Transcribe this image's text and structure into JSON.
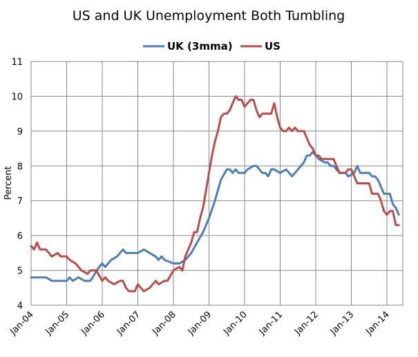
{
  "chart_data": {
    "type": "line",
    "title": "US and UK Unemployment Both Tumbling",
    "xlabel": "",
    "ylabel": "Percent",
    "ylim": [
      4,
      11
    ],
    "yticks": [
      4,
      5,
      6,
      7,
      8,
      9,
      10,
      11
    ],
    "grid": true,
    "legend": "top",
    "xlim": [
      "2004-01",
      "2014-05"
    ],
    "xticks": [
      {
        "label": "Jan-04",
        "date": "2004-01"
      },
      {
        "label": "Jan-05",
        "date": "2005-01"
      },
      {
        "label": "Jan-06",
        "date": "2006-01"
      },
      {
        "label": "Jan-07",
        "date": "2007-01"
      },
      {
        "label": "Jan-08",
        "date": "2008-01"
      },
      {
        "label": "Jan-09",
        "date": "2009-01"
      },
      {
        "label": "Jan-10",
        "date": "2010-01"
      },
      {
        "label": "Jan-11",
        "date": "2011-01"
      },
      {
        "label": "Jan-12",
        "date": "2012-01"
      },
      {
        "label": "Jan-13",
        "date": "2013-01"
      },
      {
        "label": "Jan-14",
        "date": "2014-01"
      }
    ],
    "series": [
      {
        "name": "UK (3mma)",
        "color": "#4a7ebb",
        "points": [
          [
            "2004-01",
            4.8
          ],
          [
            "2004-06",
            4.8
          ],
          [
            "2004-08",
            4.7
          ],
          [
            "2005-01",
            4.7
          ],
          [
            "2005-02",
            4.8
          ],
          [
            "2005-03",
            4.7
          ],
          [
            "2005-05",
            4.8
          ],
          [
            "2005-07",
            4.7
          ],
          [
            "2005-09",
            4.7
          ],
          [
            "2005-12",
            5.1
          ],
          [
            "2006-01",
            5.2
          ],
          [
            "2006-02",
            5.1
          ],
          [
            "2006-04",
            5.3
          ],
          [
            "2006-06",
            5.4
          ],
          [
            "2006-08",
            5.6
          ],
          [
            "2006-09",
            5.5
          ],
          [
            "2007-01",
            5.5
          ],
          [
            "2007-03",
            5.6
          ],
          [
            "2007-05",
            5.5
          ],
          [
            "2007-07",
            5.4
          ],
          [
            "2007-08",
            5.3
          ],
          [
            "2007-09",
            5.4
          ],
          [
            "2007-10",
            5.3
          ],
          [
            "2008-01",
            5.2
          ],
          [
            "2008-03",
            5.2
          ],
          [
            "2008-05",
            5.3
          ],
          [
            "2008-07",
            5.5
          ],
          [
            "2008-09",
            5.8
          ],
          [
            "2008-11",
            6.1
          ],
          [
            "2009-01",
            6.5
          ],
          [
            "2009-03",
            7.0
          ],
          [
            "2009-05",
            7.6
          ],
          [
            "2009-07",
            7.9
          ],
          [
            "2009-08",
            7.9
          ],
          [
            "2009-09",
            7.8
          ],
          [
            "2009-10",
            7.9
          ],
          [
            "2009-11",
            7.8
          ],
          [
            "2010-01",
            7.8
          ],
          [
            "2010-02",
            7.9
          ],
          [
            "2010-04",
            8.0
          ],
          [
            "2010-05",
            8.0
          ],
          [
            "2010-07",
            7.8
          ],
          [
            "2010-08",
            7.8
          ],
          [
            "2010-09",
            7.7
          ],
          [
            "2010-10",
            7.9
          ],
          [
            "2010-11",
            7.9
          ],
          [
            "2011-01",
            7.8
          ],
          [
            "2011-03",
            7.9
          ],
          [
            "2011-05",
            7.7
          ],
          [
            "2011-07",
            7.9
          ],
          [
            "2011-09",
            8.1
          ],
          [
            "2011-10",
            8.3
          ],
          [
            "2011-11",
            8.3
          ],
          [
            "2011-12",
            8.4
          ],
          [
            "2012-02",
            8.2
          ],
          [
            "2012-04",
            8.1
          ],
          [
            "2012-05",
            8.1
          ],
          [
            "2012-06",
            8.0
          ],
          [
            "2012-07",
            8.0
          ],
          [
            "2012-08",
            7.9
          ],
          [
            "2012-09",
            7.8
          ],
          [
            "2012-11",
            7.8
          ],
          [
            "2012-12",
            7.7
          ],
          [
            "2013-02",
            7.8
          ],
          [
            "2013-03",
            8.0
          ],
          [
            "2013-04",
            7.8
          ],
          [
            "2013-07",
            7.8
          ],
          [
            "2013-08",
            7.7
          ],
          [
            "2013-09",
            7.7
          ],
          [
            "2013-10",
            7.6
          ],
          [
            "2013-11",
            7.4
          ],
          [
            "2013-12",
            7.2
          ],
          [
            "2014-01",
            7.2
          ],
          [
            "2014-02",
            7.2
          ],
          [
            "2014-03",
            6.9
          ],
          [
            "2014-04",
            6.8
          ],
          [
            "2014-05",
            6.6
          ]
        ]
      },
      {
        "name": "US",
        "color": "#be4b48",
        "points": [
          [
            "2004-01",
            5.7
          ],
          [
            "2004-02",
            5.6
          ],
          [
            "2004-03",
            5.8
          ],
          [
            "2004-04",
            5.6
          ],
          [
            "2004-06",
            5.6
          ],
          [
            "2004-08",
            5.4
          ],
          [
            "2004-10",
            5.5
          ],
          [
            "2004-11",
            5.4
          ],
          [
            "2005-01",
            5.4
          ],
          [
            "2005-02",
            5.3
          ],
          [
            "2005-04",
            5.2
          ],
          [
            "2005-06",
            5.0
          ],
          [
            "2005-08",
            4.9
          ],
          [
            "2005-09",
            5.0
          ],
          [
            "2005-11",
            5.0
          ],
          [
            "2006-01",
            4.7
          ],
          [
            "2006-02",
            4.8
          ],
          [
            "2006-03",
            4.7
          ],
          [
            "2006-05",
            4.6
          ],
          [
            "2006-07",
            4.7
          ],
          [
            "2006-08",
            4.7
          ],
          [
            "2006-09",
            4.5
          ],
          [
            "2006-10",
            4.4
          ],
          [
            "2006-12",
            4.4
          ],
          [
            "2007-01",
            4.6
          ],
          [
            "2007-02",
            4.5
          ],
          [
            "2007-03",
            4.4
          ],
          [
            "2007-05",
            4.5
          ],
          [
            "2007-07",
            4.7
          ],
          [
            "2007-08",
            4.6
          ],
          [
            "2007-10",
            4.7
          ],
          [
            "2007-11",
            4.7
          ],
          [
            "2008-01",
            5.0
          ],
          [
            "2008-03",
            5.1
          ],
          [
            "2008-04",
            5.0
          ],
          [
            "2008-05",
            5.4
          ],
          [
            "2008-06",
            5.6
          ],
          [
            "2008-07",
            5.8
          ],
          [
            "2008-08",
            6.1
          ],
          [
            "2008-09",
            6.1
          ],
          [
            "2008-10",
            6.5
          ],
          [
            "2008-11",
            6.8
          ],
          [
            "2008-12",
            7.3
          ],
          [
            "2009-01",
            7.8
          ],
          [
            "2009-02",
            8.3
          ],
          [
            "2009-03",
            8.7
          ],
          [
            "2009-04",
            9.0
          ],
          [
            "2009-05",
            9.4
          ],
          [
            "2009-06",
            9.5
          ],
          [
            "2009-07",
            9.5
          ],
          [
            "2009-08",
            9.6
          ],
          [
            "2009-09",
            9.8
          ],
          [
            "2009-10",
            10.0
          ],
          [
            "2009-11",
            9.9
          ],
          [
            "2009-12",
            9.9
          ],
          [
            "2010-01",
            9.7
          ],
          [
            "2010-02",
            9.8
          ],
          [
            "2010-03",
            9.9
          ],
          [
            "2010-04",
            9.9
          ],
          [
            "2010-05",
            9.6
          ],
          [
            "2010-06",
            9.4
          ],
          [
            "2010-07",
            9.5
          ],
          [
            "2010-10",
            9.5
          ],
          [
            "2010-11",
            9.8
          ],
          [
            "2010-12",
            9.4
          ],
          [
            "2011-01",
            9.1
          ],
          [
            "2011-02",
            9.0
          ],
          [
            "2011-03",
            9.0
          ],
          [
            "2011-04",
            9.1
          ],
          [
            "2011-05",
            9.0
          ],
          [
            "2011-06",
            9.1
          ],
          [
            "2011-07",
            9.0
          ],
          [
            "2011-09",
            9.0
          ],
          [
            "2011-10",
            8.8
          ],
          [
            "2011-11",
            8.6
          ],
          [
            "2011-12",
            8.5
          ],
          [
            "2012-01",
            8.3
          ],
          [
            "2012-02",
            8.3
          ],
          [
            "2012-03",
            8.2
          ],
          [
            "2012-06",
            8.2
          ],
          [
            "2012-07",
            8.2
          ],
          [
            "2012-08",
            8.0
          ],
          [
            "2012-09",
            7.8
          ],
          [
            "2012-10",
            7.8
          ],
          [
            "2012-11",
            7.8
          ],
          [
            "2012-12",
            7.9
          ],
          [
            "2013-01",
            7.9
          ],
          [
            "2013-02",
            7.7
          ],
          [
            "2013-03",
            7.5
          ],
          [
            "2013-07",
            7.5
          ],
          [
            "2013-08",
            7.2
          ],
          [
            "2013-10",
            7.2
          ],
          [
            "2013-11",
            7.0
          ],
          [
            "2013-12",
            6.7
          ],
          [
            "2014-01",
            6.6
          ],
          [
            "2014-02",
            6.7
          ],
          [
            "2014-03",
            6.7
          ],
          [
            "2014-04",
            6.3
          ],
          [
            "2014-05",
            6.3
          ]
        ]
      }
    ]
  }
}
